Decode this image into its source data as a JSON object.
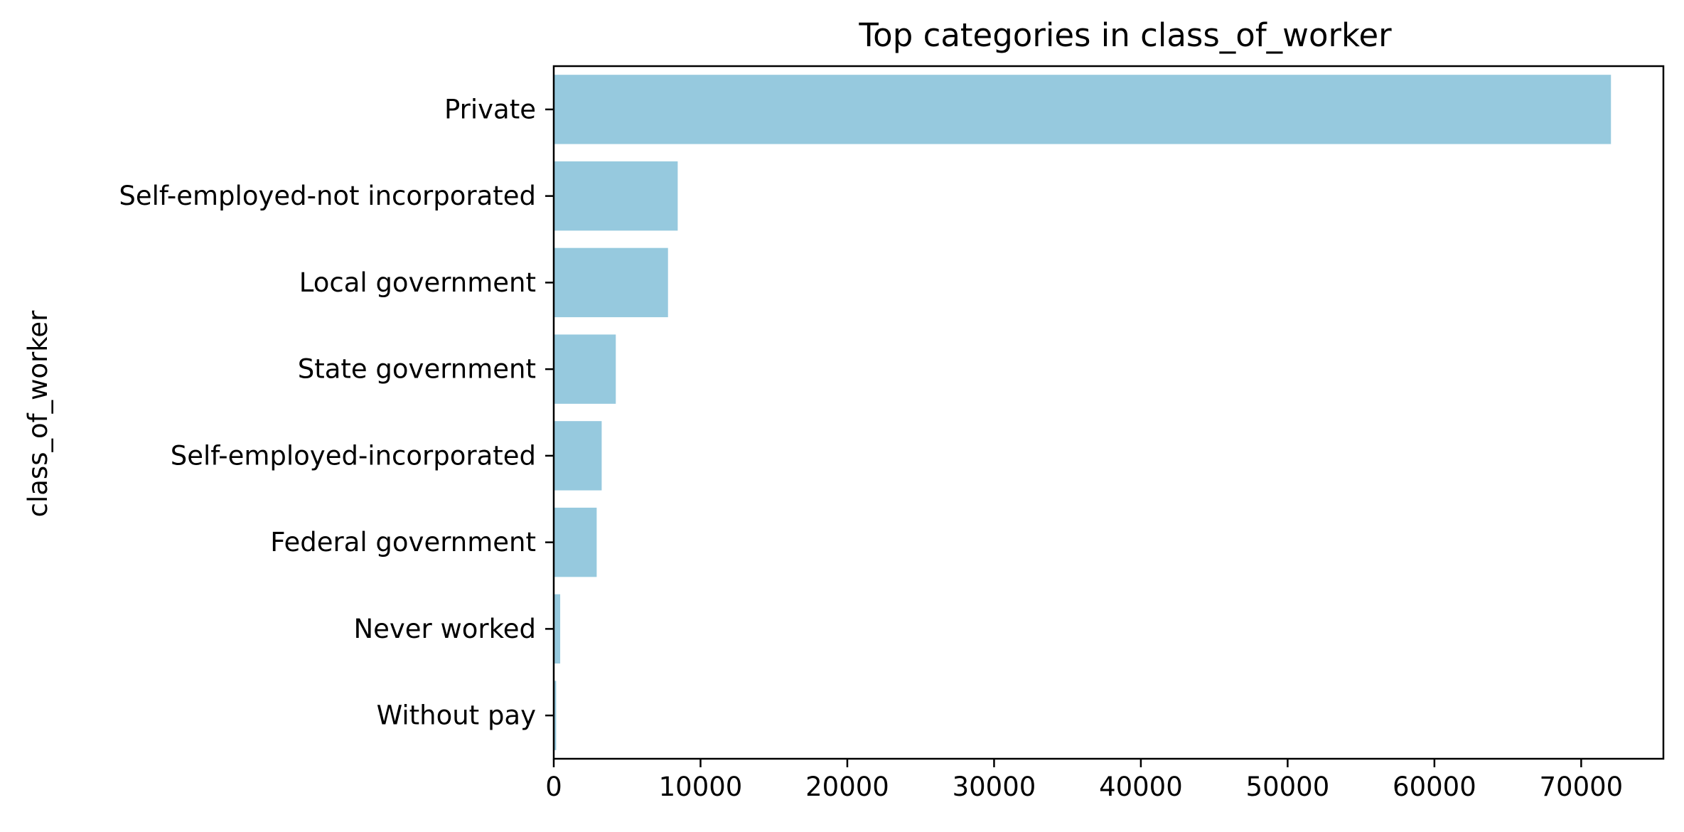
{
  "chart_data": {
    "type": "bar",
    "orientation": "horizontal",
    "title": "Top categories in class_of_worker",
    "xlabel": "",
    "ylabel": "class_of_worker",
    "categories": [
      "Private",
      "Self-employed-not incorporated",
      "Local government",
      "State government",
      "Self-employed-incorporated",
      "Federal government",
      "Never worked",
      "Without pay"
    ],
    "values": [
      72028,
      8445,
      7784,
      4227,
      3265,
      2925,
      439,
      165
    ],
    "xlim": [
      0,
      75600
    ],
    "xticks": [
      0,
      10000,
      20000,
      30000,
      40000,
      50000,
      60000,
      70000
    ],
    "bar_color": "#96c9de",
    "grid": false,
    "legend": "none"
  }
}
